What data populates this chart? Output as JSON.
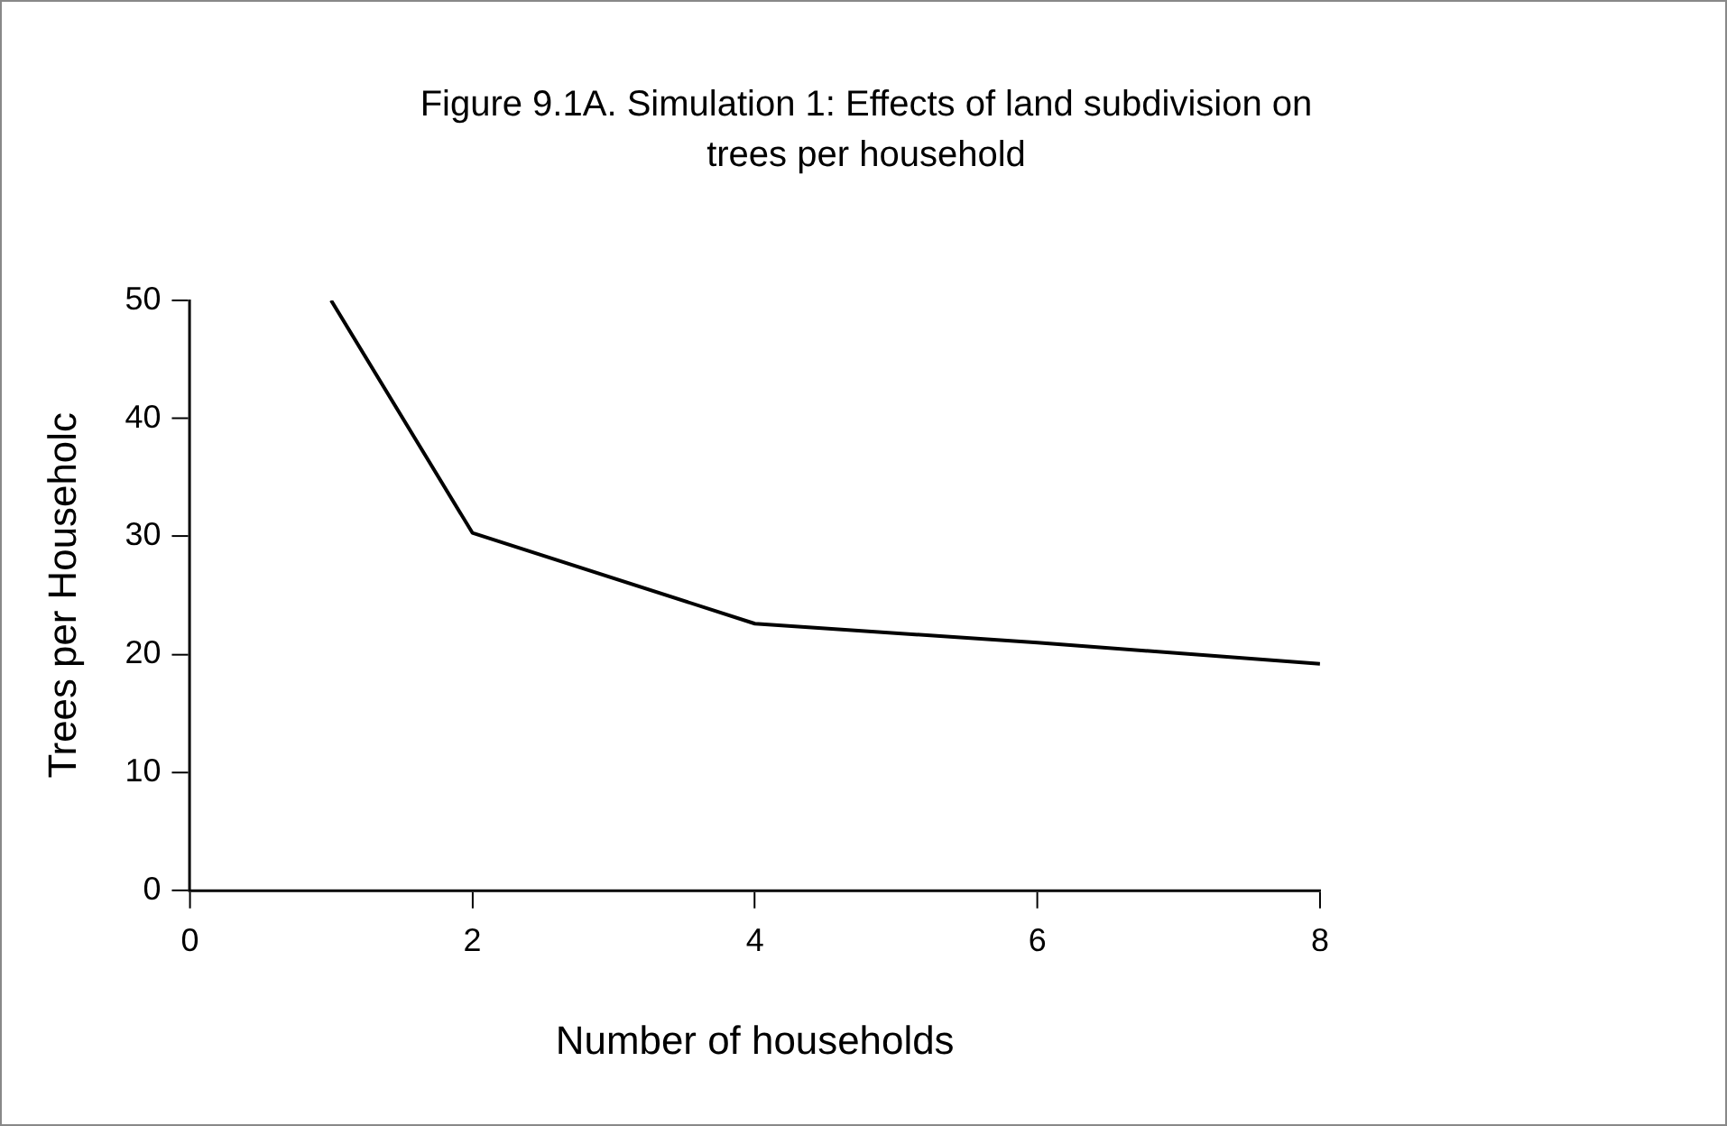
{
  "chart_data": {
    "type": "line",
    "title": "Figure 9.1A. Simulation 1: Effects of land subdivision on trees per household",
    "xlabel": "Number of households",
    "ylabel": "Trees per Householc",
    "x": [
      1,
      2,
      4,
      6,
      8
    ],
    "series": [
      {
        "color": "#000000",
        "values": [
          50,
          30.3,
          22.6,
          21.0,
          19.2
        ]
      }
    ],
    "xlim": [
      0,
      8
    ],
    "xticks": [
      0,
      2,
      4,
      6,
      8
    ],
    "ylim": [
      0,
      50
    ],
    "yticks": [
      0,
      10,
      20,
      30,
      40,
      50
    ],
    "grid": false,
    "legend": false,
    "marker": "none",
    "line_style": "solid"
  }
}
